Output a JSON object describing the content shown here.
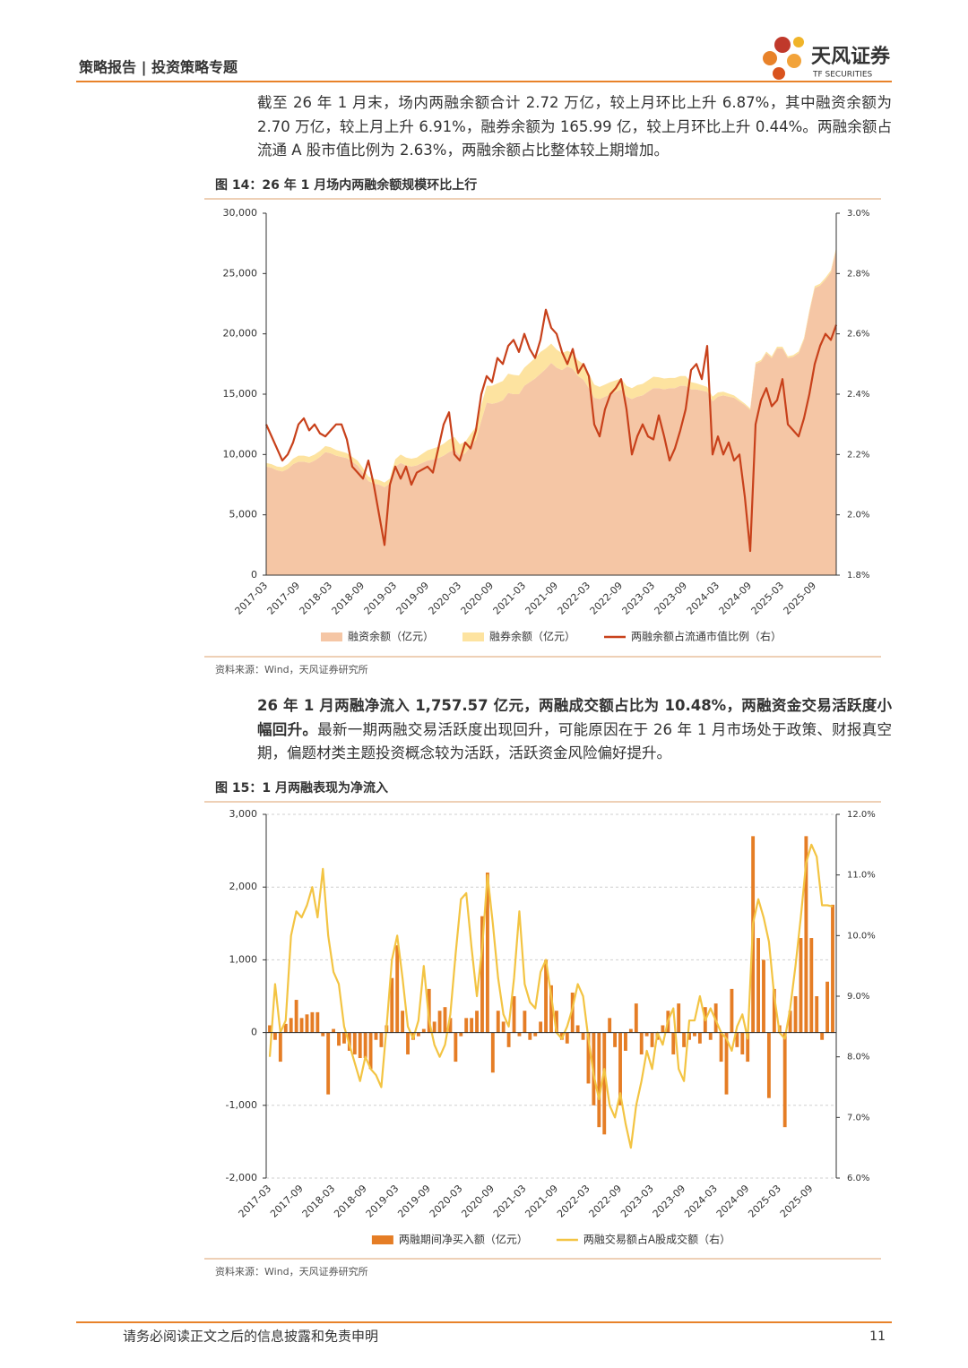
{
  "header": {
    "section": "策略报告 | 投资策略专题",
    "logo_name": "天风证券",
    "logo_subtitle": "TF SECURITIES"
  },
  "paragraph_1": "截至 26 年 1 月末，场内两融余额合计 2.72 万亿，较上月环比上升 6.87%，其中融资余额为 2.70 万亿，较上月上升 6.91%，融券余额为 165.99 亿，较上月环比上升 0.44%。两融余额占流通 A 股市值比例为 2.63%，两融余额占比整体较上期增加。",
  "paragraph_2": {
    "lead": "26 年 1 月两融净流入 1,757.57 亿元，两融成交额占比为 10.48%，两融资金交易活跃度小幅回升。",
    "body": "最新一期两融交易活跃度出现回升，可能原因在于 26 年 1 月市场处于政策、财报真空期，偏题材类主题投资概念较为活跃，活跃资金风险偏好提升。"
  },
  "chart_data": [
    {
      "type": "area",
      "title": "图 14：26 年 1 月场内两融余额规模环比上行",
      "source": "资料来源：Wind，天风证券研究所",
      "categories": [
        "2017-03",
        null,
        null,
        null,
        null,
        null,
        "2017-09",
        null,
        null,
        null,
        null,
        null,
        "2018-03",
        null,
        null,
        null,
        null,
        null,
        "2018-09",
        null,
        null,
        null,
        null,
        null,
        "2019-03",
        null,
        null,
        null,
        null,
        null,
        "2019-09",
        null,
        null,
        null,
        null,
        null,
        "2020-03",
        null,
        null,
        null,
        null,
        null,
        "2020-09",
        null,
        null,
        null,
        null,
        null,
        "2021-03",
        null,
        null,
        null,
        null,
        null,
        "2021-09",
        null,
        null,
        null,
        null,
        null,
        "2022-03",
        null,
        null,
        null,
        null,
        null,
        "2022-09",
        null,
        null,
        null,
        null,
        null,
        "2023-03",
        null,
        null,
        null,
        null,
        null,
        "2023-09",
        null,
        null,
        null,
        null,
        null,
        "2024-03",
        null,
        null,
        null,
        null,
        null,
        "2024-09",
        null,
        null,
        null,
        null,
        null,
        "2025-03",
        null,
        null,
        null,
        null,
        null,
        "2025-09",
        null,
        null,
        null,
        null
      ],
      "series": [
        {
          "name": "融资余额（亿元）",
          "type": "area",
          "color": "#f5c6a5",
          "values": [
            9000,
            8900,
            8700,
            8600,
            8800,
            9200,
            9400,
            9400,
            9300,
            9500,
            9800,
            10200,
            10100,
            9900,
            9800,
            9700,
            9400,
            9100,
            8500,
            7800,
            7600,
            7500,
            7300,
            7600,
            9000,
            9300,
            9100,
            9000,
            9100,
            9300,
            9500,
            9600,
            9700,
            9900,
            10200,
            10400,
            9900,
            10100,
            10700,
            11200,
            12800,
            14300,
            14200,
            14300,
            14500,
            15100,
            15000,
            15000,
            15700,
            16000,
            16300,
            16700,
            17100,
            17600,
            17200,
            17000,
            17300,
            17100,
            16500,
            16200,
            15500,
            14700,
            14600,
            14800,
            15000,
            15200,
            15400,
            14800,
            14600,
            14800,
            14900,
            15200,
            15500,
            15500,
            15400,
            15500,
            15500,
            15700,
            15700,
            15400,
            15400,
            15300,
            15200,
            14400,
            14800,
            14900,
            14800,
            14700,
            14400,
            14100,
            13700,
            17500,
            17700,
            18400,
            18000,
            18800,
            18800,
            18000,
            18100,
            18400,
            19500,
            21800,
            23800,
            24000,
            24500,
            25100,
            27000
          ]
        },
        {
          "name": "融券余额（亿元）",
          "type": "area",
          "color": "#fde3a0",
          "values": [
            300,
            300,
            300,
            350,
            400,
            450,
            500,
            500,
            500,
            500,
            500,
            500,
            500,
            480,
            450,
            420,
            400,
            400,
            380,
            380,
            380,
            380,
            380,
            400,
            600,
            700,
            650,
            650,
            650,
            750,
            850,
            900,
            950,
            1000,
            1050,
            1050,
            950,
            950,
            1000,
            1100,
            1300,
            1400,
            1500,
            1600,
            1600,
            1600,
            1600,
            1550,
            1500,
            1600,
            1700,
            1800,
            1700,
            1600,
            1500,
            1400,
            1300,
            1300,
            1300,
            1300,
            1200,
            1100,
            1000,
            1000,
            1000,
            950,
            900,
            900,
            900,
            950,
            950,
            950,
            950,
            900,
            900,
            850,
            850,
            800,
            800,
            600,
            500,
            450,
            400,
            400,
            350,
            300,
            250,
            200,
            150,
            120,
            120,
            130,
            130,
            130,
            140,
            140,
            140,
            140,
            140,
            140,
            150,
            150,
            160,
            160,
            160,
            160,
            165.99
          ]
        },
        {
          "name": "两融余额占流通市值比例（右）",
          "type": "line",
          "axis": "y2",
          "color": "#c8411b",
          "values": [
            2.3,
            2.26,
            2.22,
            2.18,
            2.2,
            2.24,
            2.3,
            2.32,
            2.28,
            2.3,
            2.27,
            2.26,
            2.28,
            2.3,
            2.3,
            2.25,
            2.16,
            2.14,
            2.12,
            2.18,
            2.1,
            2.0,
            1.9,
            2.1,
            2.16,
            2.12,
            2.16,
            2.1,
            2.14,
            2.15,
            2.16,
            2.14,
            2.22,
            2.3,
            2.34,
            2.2,
            2.18,
            2.24,
            2.22,
            2.28,
            2.4,
            2.46,
            2.44,
            2.52,
            2.5,
            2.56,
            2.58,
            2.54,
            2.6,
            2.55,
            2.52,
            2.58,
            2.68,
            2.62,
            2.6,
            2.54,
            2.5,
            2.55,
            2.47,
            2.5,
            2.46,
            2.3,
            2.26,
            2.35,
            2.4,
            2.42,
            2.45,
            2.35,
            2.2,
            2.26,
            2.3,
            2.26,
            2.25,
            2.33,
            2.26,
            2.18,
            2.22,
            2.28,
            2.35,
            2.48,
            2.5,
            2.45,
            2.56,
            2.2,
            2.26,
            2.2,
            2.24,
            2.18,
            2.2,
            2.06,
            1.88,
            2.3,
            2.38,
            2.42,
            2.36,
            2.38,
            2.45,
            2.3,
            2.28,
            2.26,
            2.32,
            2.4,
            2.5,
            2.56,
            2.6,
            2.58,
            2.63
          ]
        }
      ],
      "ylim": [
        0,
        30000
      ],
      "yticks": [
        0,
        {
          "value": 5000,
          "label": "5,000"
        },
        {
          "value": 10000,
          "label": "10,000"
        },
        {
          "value": 15000,
          "label": "15,000"
        },
        {
          "value": 20000,
          "label": "20,000"
        },
        {
          "value": 25000,
          "label": "25,000"
        },
        {
          "value": 30000,
          "label": "30,000"
        }
      ],
      "y2lim": [
        1.8,
        3.0
      ],
      "y2ticks": [
        {
          "value": 1.8,
          "label": "1.8%"
        },
        {
          "value": 2.0,
          "label": "2.0%"
        },
        {
          "value": 2.2,
          "label": "2.2%"
        },
        {
          "value": 2.4,
          "label": "2.4%"
        },
        {
          "value": 2.6,
          "label": "2.6%"
        },
        {
          "value": 2.8,
          "label": "2.8%"
        },
        {
          "value": 3.0,
          "label": "3.0%"
        }
      ],
      "grid": false,
      "stacked": true,
      "legend": "bottom"
    },
    {
      "type": "bar",
      "title": "图 15：1 月两融表现为净流入",
      "source": "资料来源：Wind，天风证券研究所",
      "categories": [
        "2017-03",
        null,
        null,
        null,
        null,
        null,
        "2017-09",
        null,
        null,
        null,
        null,
        null,
        "2018-03",
        null,
        null,
        null,
        null,
        null,
        "2018-09",
        null,
        null,
        null,
        null,
        null,
        "2019-03",
        null,
        null,
        null,
        null,
        null,
        "2019-09",
        null,
        null,
        null,
        null,
        null,
        "2020-03",
        null,
        null,
        null,
        null,
        null,
        "2020-09",
        null,
        null,
        null,
        null,
        null,
        "2021-03",
        null,
        null,
        null,
        null,
        null,
        "2021-09",
        null,
        null,
        null,
        null,
        null,
        "2022-03",
        null,
        null,
        null,
        null,
        null,
        "2022-09",
        null,
        null,
        null,
        null,
        null,
        "2023-03",
        null,
        null,
        null,
        null,
        null,
        "2023-09",
        null,
        null,
        null,
        null,
        null,
        "2024-03",
        null,
        null,
        null,
        null,
        null,
        "2024-09",
        null,
        null,
        null,
        null,
        null,
        "2025-03",
        null,
        null,
        null,
        null,
        null,
        "2025-09",
        null,
        null,
        null,
        null
      ],
      "series": [
        {
          "name": "两融期间净买入额（亿元）",
          "type": "bar",
          "color": "#e57d25",
          "values": [
            100,
            -100,
            -400,
            120,
            200,
            450,
            200,
            250,
            280,
            280,
            -50,
            -850,
            50,
            -180,
            -150,
            -250,
            -300,
            -350,
            -350,
            -500,
            -100,
            -200,
            100,
            750,
            1200,
            300,
            -300,
            -100,
            -50,
            50,
            600,
            150,
            300,
            350,
            200,
            -400,
            -50,
            200,
            200,
            300,
            1600,
            2200,
            -550,
            300,
            150,
            -200,
            500,
            -50,
            300,
            -100,
            -50,
            150,
            1000,
            650,
            300,
            -100,
            -150,
            550,
            100,
            -100,
            -700,
            -1000,
            -1300,
            -1400,
            200,
            -200,
            -1000,
            -250,
            50,
            400,
            -300,
            -50,
            -200,
            -100,
            100,
            300,
            -300,
            400,
            -200,
            -100,
            -50,
            -150,
            350,
            -100,
            400,
            -400,
            -850,
            600,
            -200,
            -300,
            -400,
            2700,
            1300,
            1000,
            -900,
            600,
            100,
            -1300,
            300,
            500,
            1300,
            2700,
            1300,
            500,
            -100,
            700,
            1757.57
          ]
        },
        {
          "name": "两融交易额占A股成交额（右）",
          "type": "line",
          "axis": "y2",
          "color": "#f3c443",
          "values": [
            8.0,
            9.2,
            8.4,
            8.6,
            10.0,
            10.4,
            10.3,
            10.5,
            10.8,
            10.3,
            11.1,
            10.0,
            9.4,
            9.2,
            8.5,
            8.2,
            7.9,
            7.6,
            8.0,
            7.8,
            7.7,
            7.5,
            8.5,
            9.6,
            10.0,
            9.3,
            8.5,
            8.3,
            8.6,
            9.5,
            8.6,
            8.2,
            8.0,
            8.2,
            8.7,
            9.7,
            10.6,
            10.7,
            9.8,
            9.0,
            9.8,
            11.0,
            10.2,
            9.3,
            8.7,
            8.5,
            9.3,
            10.4,
            9.2,
            8.9,
            8.8,
            9.4,
            9.6,
            9.0,
            8.4,
            8.3,
            8.5,
            8.8,
            9.2,
            9.0,
            8.3,
            7.7,
            7.3,
            7.8,
            7.2,
            7.0,
            7.4,
            6.9,
            6.5,
            7.2,
            7.6,
            8.1,
            7.8,
            8.4,
            8.2,
            8.6,
            8.8,
            7.8,
            7.6,
            8.6,
            8.6,
            9.0,
            8.6,
            8.8,
            8.6,
            8.4,
            8.3,
            8.1,
            8.5,
            8.7,
            8.3,
            10.2,
            10.6,
            10.3,
            9.9,
            9.0,
            8.4,
            8.3,
            8.8,
            9.5,
            10.3,
            11.2,
            11.5,
            11.3,
            10.5,
            10.5,
            10.48
          ]
        }
      ],
      "ylim": [
        -2000,
        3000
      ],
      "yticks": [
        {
          "value": -2000,
          "label": "-2,000"
        },
        {
          "value": -1000,
          "label": "-1,000"
        },
        0,
        {
          "value": 1000,
          "label": "1,000"
        },
        {
          "value": 2000,
          "label": "2,000"
        },
        {
          "value": 3000,
          "label": "3,000"
        }
      ],
      "y2lim": [
        6,
        12
      ],
      "y2ticks": [
        {
          "value": 6,
          "label": "6.0%"
        },
        {
          "value": 7,
          "label": "7.0%"
        },
        {
          "value": 8,
          "label": "8.0%"
        },
        {
          "value": 9,
          "label": "9.0%"
        },
        {
          "value": 10,
          "label": "10.0%"
        },
        {
          "value": 11,
          "label": "11.0%"
        },
        {
          "value": 12,
          "label": "12.0%"
        }
      ],
      "grid": true,
      "stacked": false,
      "legend": "bottom"
    }
  ],
  "footer": {
    "disclaimer": "请务必阅读正文之后的信息披露和免责申明",
    "page": "11"
  }
}
